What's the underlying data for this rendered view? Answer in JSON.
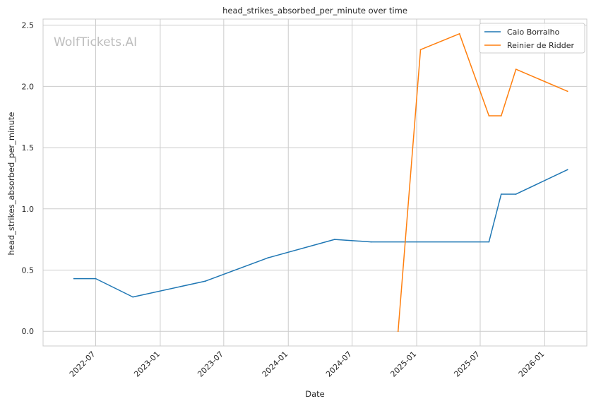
{
  "chart_data": {
    "type": "line",
    "title": "head_strikes_absorbed_per_minute over time",
    "xlabel": "Date",
    "ylabel": "head_strikes_absorbed_per_minute",
    "watermark": "WolfTickets.AI",
    "xlim": [
      "2022-02-01",
      "2026-05-01"
    ],
    "ylim": [
      -0.12,
      2.55
    ],
    "x_ticks": [
      "2022-07",
      "2023-01",
      "2023-07",
      "2024-01",
      "2024-07",
      "2025-01",
      "2025-07",
      "2026-01"
    ],
    "y_ticks": [
      0.0,
      0.5,
      1.0,
      1.5,
      2.0,
      2.5
    ],
    "y_tick_labels": [
      "0.0",
      "0.5",
      "1.0",
      "1.5",
      "2.0",
      "2.5"
    ],
    "grid": true,
    "legend": "top-right",
    "series": [
      {
        "name": "Caio Borralho",
        "color": "#1f77b4",
        "points": [
          [
            "2022-04-30",
            0.43
          ],
          [
            "2022-07-01",
            0.43
          ],
          [
            "2022-10-15",
            0.28
          ],
          [
            "2023-05-10",
            0.41
          ],
          [
            "2023-11-04",
            0.6
          ],
          [
            "2024-05-12",
            0.75
          ],
          [
            "2024-08-24",
            0.73
          ],
          [
            "2025-07-26",
            0.73
          ],
          [
            "2025-08-30",
            1.12
          ],
          [
            "2025-10-11",
            1.12
          ],
          [
            "2026-03-07",
            1.32
          ]
        ]
      },
      {
        "name": "Reinier de Ridder",
        "color": "#ff7f0e",
        "points": [
          [
            "2024-11-09",
            0.0
          ],
          [
            "2025-01-12",
            2.3
          ],
          [
            "2025-05-03",
            2.43
          ],
          [
            "2025-07-26",
            1.76
          ],
          [
            "2025-08-30",
            1.76
          ],
          [
            "2025-10-11",
            2.14
          ],
          [
            "2026-03-07",
            1.96
          ]
        ]
      }
    ]
  }
}
